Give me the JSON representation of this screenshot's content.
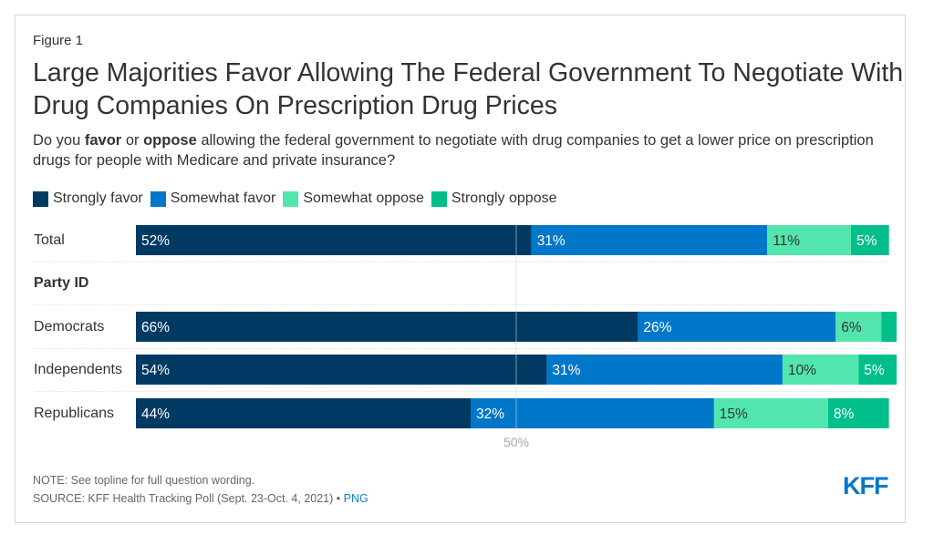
{
  "figure_label": "Figure 1",
  "title": "Large Majorities Favor Allowing The Federal Government To Negotiate With Drug Companies On Prescription Drug Prices",
  "subtitle": {
    "part1": "Do you ",
    "bold1": "favor",
    "part2": " or ",
    "bold2": "oppose",
    "part3": " allowing the federal government to negotiate with drug companies to get a lower price on prescription drugs for people with Medicare and private insurance?"
  },
  "footer": {
    "note": "NOTE: See topline for full question wording.",
    "source": "SOURCE: KFF Health Tracking Poll (Sept. 23-Oct. 4, 2021) •",
    "link": "PNG"
  },
  "logo": "KFF",
  "chart_data": {
    "type": "bar",
    "orientation": "horizontal",
    "stacked": true,
    "title": "Large Majorities Favor Allowing The Federal Government To Negotiate With Drug Companies On Prescription Drug Prices",
    "categories": [
      "Total",
      "Democrats",
      "Independents",
      "Republicans"
    ],
    "group_header": {
      "label": "Party ID",
      "before_index": 1
    },
    "series": [
      {
        "name": "Strongly favor",
        "color": "#003a63",
        "label_color": "#ffffff",
        "values": [
          52,
          66,
          54,
          44
        ],
        "labels": [
          "52%",
          "66%",
          "54%",
          "44%"
        ]
      },
      {
        "name": "Somewhat favor",
        "color": "#0077c8",
        "label_color": "#ffffff",
        "values": [
          31,
          26,
          31,
          32
        ],
        "labels": [
          "31%",
          "26%",
          "31%",
          "32%"
        ]
      },
      {
        "name": "Somewhat oppose",
        "color": "#52e5ad",
        "label_color": "#333333",
        "values": [
          11,
          6,
          10,
          15
        ],
        "labels": [
          "11%",
          "6%",
          "10%",
          "15%"
        ]
      },
      {
        "name": "Strongly oppose",
        "color": "#00bf8a",
        "label_color": "#ffffff",
        "values": [
          5,
          2,
          5,
          8
        ],
        "labels": [
          "5%",
          "",
          "5%",
          "8%"
        ]
      }
    ],
    "xlim": [
      0,
      100
    ],
    "reference_line": {
      "value": 50,
      "label": "50%"
    },
    "legend_position": "top-left",
    "xlabel": "",
    "ylabel": ""
  }
}
